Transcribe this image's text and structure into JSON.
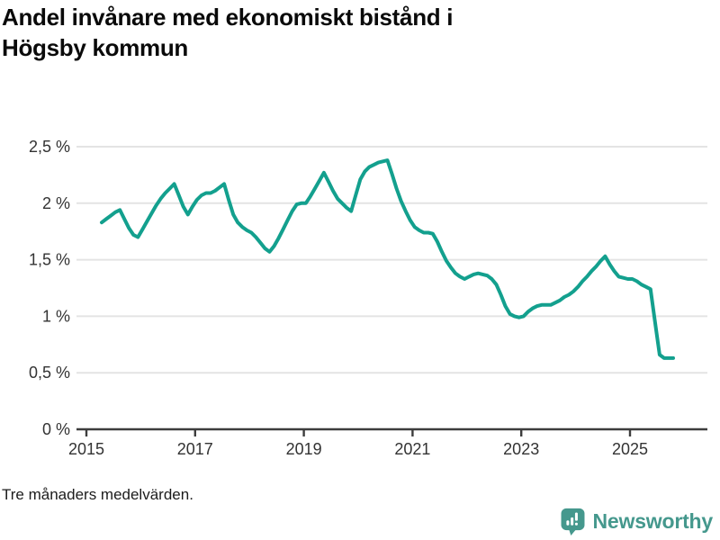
{
  "header": {
    "title": "Andel invånare med ekonomiskt bistånd i Högsby kommun",
    "title_lines": [
      "Andel invånare med ekonomiskt bistånd i",
      "Högsby kommun"
    ]
  },
  "footer": {
    "note": "Tre månaders medelvärden."
  },
  "logo": {
    "text": "Newsworthy",
    "icon": "newsworthy-speech-bubble-bar-chart",
    "color": "#45988d"
  },
  "chart_data": {
    "type": "line",
    "title": "Andel invånare med ekonomiskt bistånd i Högsby kommun",
    "xlabel": "",
    "ylabel": "",
    "unit": "%",
    "grid": true,
    "legend_position": "none",
    "line_color": "#13a08e",
    "grid_color": "#e4e4e4",
    "axis_color": "#3d3d3d",
    "label_color": "#333333",
    "ylim": [
      0,
      2.65
    ],
    "xlim_years": [
      2014.82,
      2026.42
    ],
    "y_ticks": [
      {
        "value": 2.5,
        "label": "2,5 %"
      },
      {
        "value": 2.0,
        "label": "2 %"
      },
      {
        "value": 1.5,
        "label": "1,5 %"
      },
      {
        "value": 1.0,
        "label": "1 %"
      },
      {
        "value": 0.5,
        "label": "0,5 %"
      },
      {
        "value": 0.0,
        "label": "0 %"
      }
    ],
    "x_ticks": [
      {
        "value": 2015,
        "label": "2015"
      },
      {
        "value": 2017,
        "label": "2017"
      },
      {
        "value": 2019,
        "label": "2019"
      },
      {
        "value": 2021,
        "label": "2021"
      },
      {
        "value": 2023,
        "label": "2023"
      },
      {
        "value": 2025,
        "label": "2025"
      }
    ],
    "series": [
      {
        "name": "Högsby kommun",
        "frequency": "monthly",
        "start_month": "2015-04",
        "end_month": "2025-10",
        "values": [
          1.83,
          1.86,
          1.89,
          1.92,
          1.94,
          1.86,
          1.78,
          1.72,
          1.7,
          1.77,
          1.84,
          1.91,
          1.98,
          2.04,
          2.09,
          2.13,
          2.17,
          2.07,
          1.97,
          1.9,
          1.97,
          2.03,
          2.07,
          2.09,
          2.09,
          2.11,
          2.14,
          2.17,
          2.03,
          1.9,
          1.83,
          1.79,
          1.76,
          1.74,
          1.7,
          1.65,
          1.6,
          1.57,
          1.62,
          1.69,
          1.77,
          1.85,
          1.93,
          1.99,
          2.0,
          2.0,
          2.06,
          2.13,
          2.2,
          2.27,
          2.19,
          2.11,
          2.04,
          2.0,
          1.96,
          1.93,
          2.07,
          2.21,
          2.28,
          2.32,
          2.34,
          2.36,
          2.37,
          2.38,
          2.26,
          2.13,
          2.02,
          1.93,
          1.85,
          1.79,
          1.76,
          1.74,
          1.74,
          1.73,
          1.66,
          1.57,
          1.49,
          1.43,
          1.38,
          1.35,
          1.33,
          1.35,
          1.37,
          1.38,
          1.37,
          1.36,
          1.33,
          1.28,
          1.19,
          1.09,
          1.02,
          1.0,
          0.99,
          1.0,
          1.04,
          1.07,
          1.09,
          1.1,
          1.1,
          1.1,
          1.12,
          1.14,
          1.17,
          1.19,
          1.22,
          1.26,
          1.31,
          1.35,
          1.4,
          1.44,
          1.49,
          1.53,
          1.46,
          1.4,
          1.35,
          1.34,
          1.33,
          1.33,
          1.31,
          1.28,
          1.26,
          1.24,
          0.95,
          0.66,
          0.63,
          0.63,
          0.63
        ]
      }
    ]
  }
}
